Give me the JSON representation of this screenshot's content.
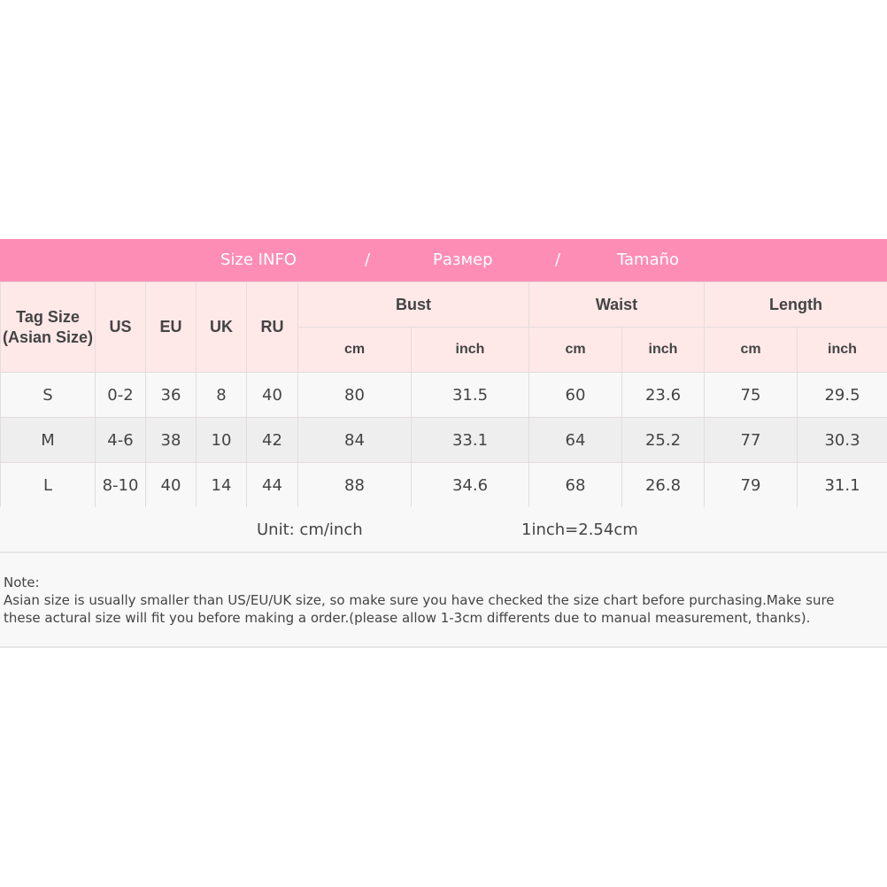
{
  "banner": {
    "title_en": "Size INFO",
    "sep1": "/",
    "title_ru": "Размер",
    "sep2": "/",
    "title_es": "Tamaño"
  },
  "colors": {
    "banner": "#fe8db6",
    "header": "#ffe8e8",
    "row_light": "#f8f8f8",
    "row_dark": "#eeeeee"
  },
  "headers": {
    "tag_line1": "Tag Size",
    "tag_line2": "(Asian Size)",
    "us": "US",
    "eu": "EU",
    "uk": "UK",
    "ru": "RU",
    "bust": "Bust",
    "waist": "Waist",
    "length": "Length",
    "cm": "cm",
    "inch": "inch"
  },
  "rows": [
    {
      "tag": "S",
      "us": "0-2",
      "eu": "36",
      "uk": "8",
      "ru": "40",
      "bust_cm": "80",
      "bust_in": "31.5",
      "waist_cm": "60",
      "waist_in": "23.6",
      "length_cm": "75",
      "length_in": "29.5"
    },
    {
      "tag": "M",
      "us": "4-6",
      "eu": "38",
      "uk": "10",
      "ru": "42",
      "bust_cm": "84",
      "bust_in": "33.1",
      "waist_cm": "64",
      "waist_in": "25.2",
      "length_cm": "77",
      "length_in": "30.3"
    },
    {
      "tag": "L",
      "us": "8-10",
      "eu": "40",
      "uk": "14",
      "ru": "44",
      "bust_cm": "88",
      "bust_in": "34.6",
      "waist_cm": "68",
      "waist_in": "26.8",
      "length_cm": "79",
      "length_in": "31.1"
    }
  ],
  "unit": {
    "label": "Unit: cm/inch",
    "conversion": "1inch=2.54cm"
  },
  "note": {
    "title": "Note:",
    "line1": "Asian size is usually smaller than US/EU/UK size, so make sure you have checked the size chart before purchasing.Make sure",
    "line2": "these actural size will fit you before making a order.(please allow 1-3cm differents due to manual measurement, thanks)."
  }
}
